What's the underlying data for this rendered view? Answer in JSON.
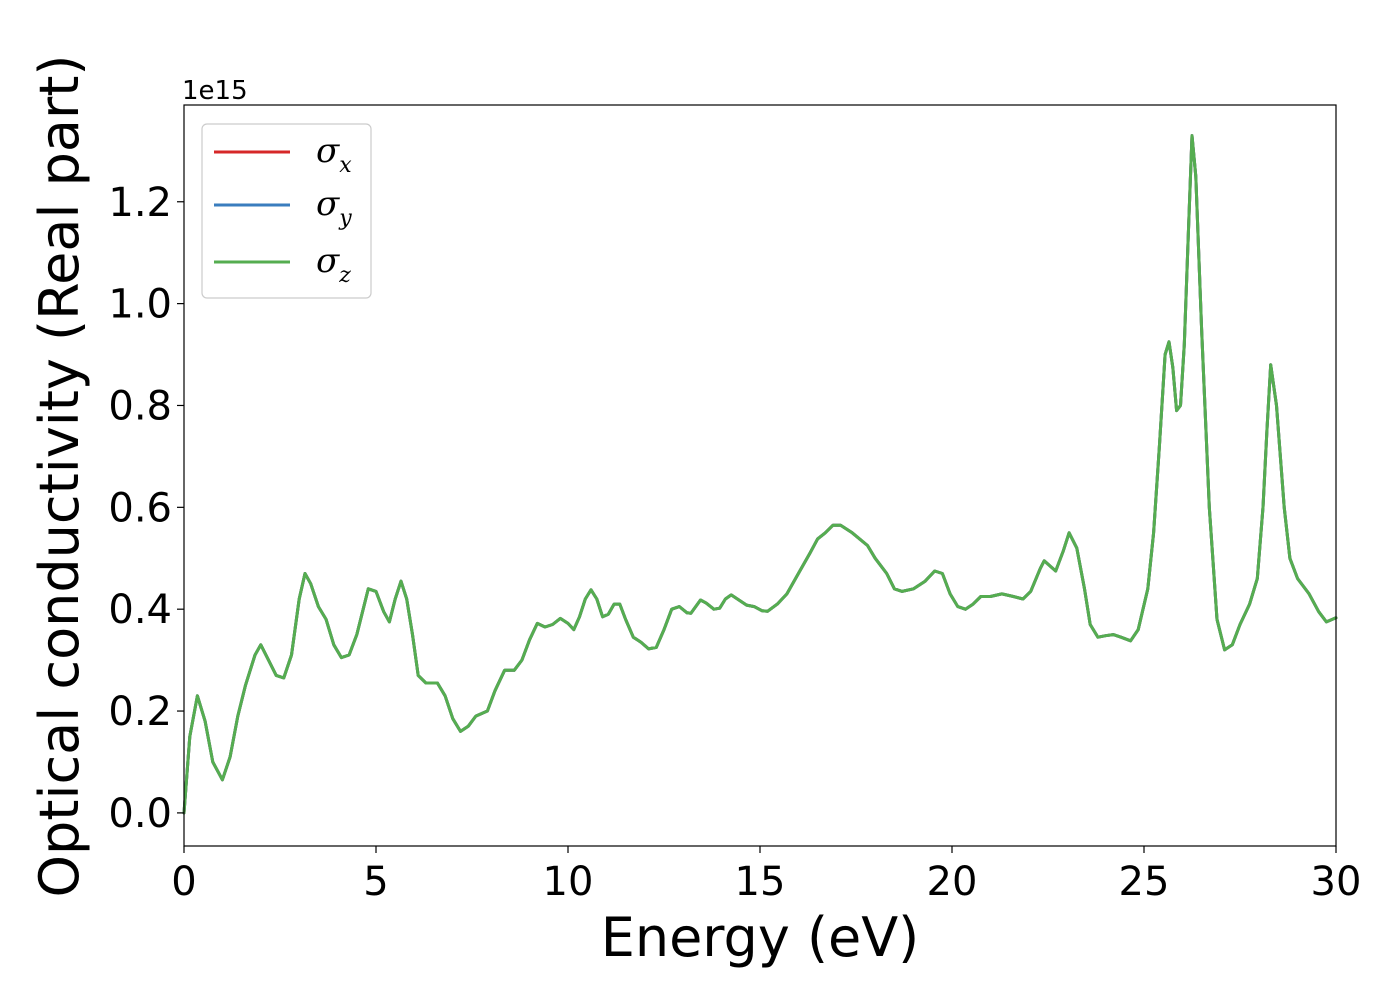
{
  "chart_data": {
    "type": "line",
    "title": "",
    "xlabel": "Energy (eV)",
    "ylabel": "Optical conductivity (Real part)",
    "y_offset_text": "1e15",
    "xlim": [
      0,
      30
    ],
    "ylim": [
      -0.065,
      1.39
    ],
    "x_ticks": [
      0,
      5,
      10,
      15,
      20,
      25,
      30
    ],
    "y_ticks": [
      0.0,
      0.2,
      0.4,
      0.6,
      0.8,
      1.0,
      1.2
    ],
    "x_tick_labels": [
      "0",
      "5",
      "10",
      "15",
      "20",
      "25",
      "30"
    ],
    "y_tick_labels": [
      "0.0",
      "0.2",
      "0.4",
      "0.6",
      "0.8",
      "1.0",
      "1.2"
    ],
    "grid": false,
    "legend_position": "top-left",
    "series_points": [
      [
        0.0,
        0.0
      ],
      [
        0.15,
        0.15
      ],
      [
        0.35,
        0.23
      ],
      [
        0.55,
        0.18
      ],
      [
        0.75,
        0.1
      ],
      [
        1.0,
        0.065
      ],
      [
        1.2,
        0.11
      ],
      [
        1.4,
        0.19
      ],
      [
        1.6,
        0.25
      ],
      [
        1.85,
        0.31
      ],
      [
        2.0,
        0.33
      ],
      [
        2.2,
        0.3
      ],
      [
        2.4,
        0.27
      ],
      [
        2.6,
        0.265
      ],
      [
        2.8,
        0.31
      ],
      [
        3.0,
        0.42
      ],
      [
        3.15,
        0.47
      ],
      [
        3.3,
        0.45
      ],
      [
        3.5,
        0.405
      ],
      [
        3.7,
        0.38
      ],
      [
        3.9,
        0.33
      ],
      [
        4.1,
        0.305
      ],
      [
        4.3,
        0.31
      ],
      [
        4.5,
        0.35
      ],
      [
        4.8,
        0.44
      ],
      [
        5.0,
        0.435
      ],
      [
        5.2,
        0.395
      ],
      [
        5.35,
        0.375
      ],
      [
        5.5,
        0.42
      ],
      [
        5.65,
        0.455
      ],
      [
        5.8,
        0.42
      ],
      [
        5.95,
        0.35
      ],
      [
        6.1,
        0.27
      ],
      [
        6.3,
        0.255
      ],
      [
        6.6,
        0.255
      ],
      [
        6.8,
        0.23
      ],
      [
        7.0,
        0.185
      ],
      [
        7.2,
        0.16
      ],
      [
        7.4,
        0.17
      ],
      [
        7.6,
        0.19
      ],
      [
        7.9,
        0.2
      ],
      [
        8.1,
        0.24
      ],
      [
        8.35,
        0.28
      ],
      [
        8.6,
        0.28
      ],
      [
        8.8,
        0.3
      ],
      [
        9.0,
        0.34
      ],
      [
        9.2,
        0.372
      ],
      [
        9.4,
        0.365
      ],
      [
        9.6,
        0.37
      ],
      [
        9.8,
        0.382
      ],
      [
        10.0,
        0.372
      ],
      [
        10.15,
        0.36
      ],
      [
        10.3,
        0.385
      ],
      [
        10.45,
        0.42
      ],
      [
        10.6,
        0.438
      ],
      [
        10.75,
        0.42
      ],
      [
        10.9,
        0.385
      ],
      [
        11.05,
        0.39
      ],
      [
        11.2,
        0.41
      ],
      [
        11.35,
        0.41
      ],
      [
        11.5,
        0.38
      ],
      [
        11.7,
        0.345
      ],
      [
        11.9,
        0.335
      ],
      [
        12.1,
        0.322
      ],
      [
        12.3,
        0.325
      ],
      [
        12.5,
        0.36
      ],
      [
        12.7,
        0.4
      ],
      [
        12.9,
        0.405
      ],
      [
        13.1,
        0.393
      ],
      [
        13.2,
        0.392
      ],
      [
        13.45,
        0.418
      ],
      [
        13.6,
        0.412
      ],
      [
        13.8,
        0.4
      ],
      [
        13.95,
        0.402
      ],
      [
        14.1,
        0.42
      ],
      [
        14.25,
        0.428
      ],
      [
        14.45,
        0.418
      ],
      [
        14.65,
        0.408
      ],
      [
        14.85,
        0.405
      ],
      [
        15.05,
        0.397
      ],
      [
        15.2,
        0.396
      ],
      [
        15.45,
        0.41
      ],
      [
        15.7,
        0.43
      ],
      [
        16.0,
        0.47
      ],
      [
        16.3,
        0.51
      ],
      [
        16.5,
        0.538
      ],
      [
        16.7,
        0.55
      ],
      [
        16.9,
        0.565
      ],
      [
        17.1,
        0.565
      ],
      [
        17.4,
        0.55
      ],
      [
        17.8,
        0.525
      ],
      [
        18.0,
        0.5
      ],
      [
        18.3,
        0.47
      ],
      [
        18.5,
        0.44
      ],
      [
        18.7,
        0.435
      ],
      [
        19.0,
        0.44
      ],
      [
        19.3,
        0.455
      ],
      [
        19.55,
        0.475
      ],
      [
        19.75,
        0.47
      ],
      [
        19.95,
        0.43
      ],
      [
        20.15,
        0.405
      ],
      [
        20.35,
        0.4
      ],
      [
        20.55,
        0.41
      ],
      [
        20.75,
        0.425
      ],
      [
        21.0,
        0.425
      ],
      [
        21.3,
        0.43
      ],
      [
        21.6,
        0.425
      ],
      [
        21.85,
        0.42
      ],
      [
        22.05,
        0.435
      ],
      [
        22.3,
        0.48
      ],
      [
        22.4,
        0.495
      ],
      [
        22.55,
        0.485
      ],
      [
        22.7,
        0.475
      ],
      [
        22.9,
        0.515
      ],
      [
        23.05,
        0.55
      ],
      [
        23.25,
        0.52
      ],
      [
        23.45,
        0.44
      ],
      [
        23.6,
        0.37
      ],
      [
        23.8,
        0.345
      ],
      [
        24.0,
        0.348
      ],
      [
        24.2,
        0.35
      ],
      [
        24.4,
        0.345
      ],
      [
        24.65,
        0.338
      ],
      [
        24.85,
        0.36
      ],
      [
        25.1,
        0.44
      ],
      [
        25.25,
        0.55
      ],
      [
        25.4,
        0.72
      ],
      [
        25.55,
        0.9
      ],
      [
        25.65,
        0.925
      ],
      [
        25.75,
        0.875
      ],
      [
        25.85,
        0.79
      ],
      [
        25.95,
        0.8
      ],
      [
        26.05,
        0.92
      ],
      [
        26.15,
        1.13
      ],
      [
        26.25,
        1.33
      ],
      [
        26.35,
        1.25
      ],
      [
        26.5,
        0.95
      ],
      [
        26.7,
        0.6
      ],
      [
        26.9,
        0.38
      ],
      [
        27.1,
        0.32
      ],
      [
        27.3,
        0.33
      ],
      [
        27.5,
        0.37
      ],
      [
        27.75,
        0.41
      ],
      [
        27.95,
        0.46
      ],
      [
        28.1,
        0.6
      ],
      [
        28.2,
        0.75
      ],
      [
        28.3,
        0.88
      ],
      [
        28.45,
        0.8
      ],
      [
        28.65,
        0.6
      ],
      [
        28.8,
        0.5
      ],
      [
        29.0,
        0.46
      ],
      [
        29.3,
        0.43
      ],
      [
        29.55,
        0.395
      ],
      [
        29.75,
        0.375
      ],
      [
        30.0,
        0.383
      ]
    ],
    "series": [
      {
        "name": "σx",
        "base": "σ",
        "sub": "x",
        "color": "#d62728"
      },
      {
        "name": "σy",
        "base": "σ",
        "sub": "y",
        "color": "#3a7dbe"
      },
      {
        "name": "σz",
        "base": "σ",
        "sub": "z",
        "color": "#55ad50"
      }
    ]
  }
}
